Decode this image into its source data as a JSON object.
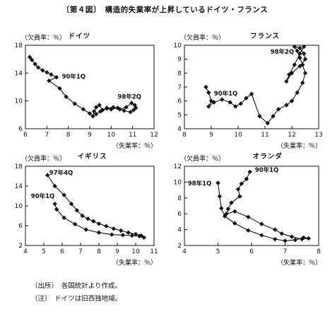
{
  "figure_title": "〔第４図〕　構造的失業率が上昇しているドイツ・フランス",
  "notes": [
    "（出所）　各国統計より作成。",
    "（注）　ドイツは旧西独地域。"
  ],
  "chart_data": [
    {
      "type": "scatter",
      "title": "ドイツ",
      "xlabel": "（失業率：％）",
      "ylabel": "（欠員率：％）",
      "xlim": [
        6,
        12
      ],
      "ylim": [
        6,
        18
      ],
      "xticks": [
        6,
        7,
        8,
        9,
        10,
        11,
        12
      ],
      "yticks": [
        6,
        10,
        14,
        18
      ],
      "annotations": [
        {
          "text": "90年1Q",
          "x": 7.7,
          "y": 13.2
        },
        {
          "text": "98年2Q",
          "x": 10.3,
          "y": 10.3
        }
      ],
      "series": [
        {
          "x": [
            6.2,
            6.3,
            6.45,
            6.6,
            6.8,
            7.0,
            7.2,
            7.45,
            7.1,
            7.6,
            7.9,
            8.3,
            8.7,
            9.0,
            9.15,
            9.2,
            9.3,
            9.45,
            9.6,
            9.8,
            10.0,
            10.3,
            10.6,
            10.9,
            11.05,
            11.15,
            11.1,
            10.95,
            10.7,
            10.4,
            10.1,
            9.8,
            9.5,
            9.3
          ],
          "y": [
            16.3,
            15.9,
            15.3,
            14.8,
            14.4,
            14.1,
            13.8,
            13.4,
            12.9,
            11.8,
            10.6,
            9.6,
            8.8,
            8.2,
            7.8,
            8.5,
            9.1,
            9.4,
            8.7,
            9.0,
            8.8,
            9.0,
            8.6,
            8.4,
            8.7,
            9.0,
            9.4,
            9.7,
            9.1,
            8.8,
            9.1,
            8.9,
            8.5,
            8.1
          ]
        }
      ]
    },
    {
      "type": "scatter",
      "title": "フランス",
      "xlabel": "（失業率：％）",
      "ylabel": "（欠員率：％）",
      "xlim": [
        8,
        13
      ],
      "ylim": [
        4,
        10
      ],
      "xticks": [
        8,
        9,
        10,
        11,
        12,
        13
      ],
      "yticks": [
        4,
        5,
        6,
        7,
        8,
        9,
        10
      ],
      "annotations": [
        {
          "text": "90年1Q",
          "x": 9.1,
          "y": 6.4
        },
        {
          "text": "98年2Q",
          "x": 11.2,
          "y": 9.4
        }
      ],
      "series": [
        {
          "x": [
            8.8,
            8.9,
            9.0,
            8.9,
            9.1,
            9.4,
            9.7,
            9.9,
            10.1,
            10.3,
            10.5,
            10.8,
            11.1,
            11.3,
            11.5,
            11.8,
            12.0,
            12.2,
            12.4,
            12.5,
            12.4,
            12.3,
            12.2,
            12.1,
            12.3,
            12.45,
            12.5,
            12.3,
            12.0,
            11.8,
            11.9,
            12.1,
            12.3,
            12.45
          ],
          "y": [
            7.0,
            6.6,
            6.0,
            5.6,
            5.9,
            6.1,
            5.9,
            5.6,
            5.8,
            6.2,
            6.5,
            4.9,
            4.4,
            4.9,
            5.4,
            5.7,
            6.0,
            6.6,
            7.3,
            8.0,
            8.6,
            9.1,
            9.6,
            9.9,
            9.8,
            9.4,
            9.0,
            8.5,
            8.0,
            7.4,
            7.9,
            8.6,
            9.4,
            9.9
          ]
        }
      ]
    },
    {
      "type": "scatter",
      "title": "イギリス",
      "xlabel": "（失業率：％）",
      "ylabel": "（欠員率：％）",
      "xlim": [
        4,
        11
      ],
      "ylim": [
        2,
        18
      ],
      "xticks": [
        4,
        5,
        6,
        7,
        8,
        9,
        10,
        11
      ],
      "yticks": [
        2,
        6,
        10,
        14,
        18
      ],
      "annotations": [
        {
          "text": "97年4Q",
          "x": 5.3,
          "y": 16.3
        },
        {
          "text": "90年1Q",
          "x": 4.3,
          "y": 11.6
        }
      ],
      "series": [
        {
          "x": [
            5.6,
            5.7,
            6.1,
            6.7,
            7.3,
            8.0,
            8.7,
            9.3,
            9.8,
            10.2,
            10.45,
            10.3,
            10.0,
            9.6,
            9.2,
            8.8,
            8.4,
            8.0,
            7.7,
            7.4,
            7.1,
            6.8,
            6.5,
            6.1,
            5.6,
            5.2
          ],
          "y": [
            10.4,
            9.3,
            7.6,
            6.3,
            5.2,
            4.6,
            4.2,
            4.1,
            4.0,
            3.9,
            3.6,
            4.0,
            4.3,
            4.6,
            5.0,
            5.4,
            5.9,
            6.4,
            6.9,
            7.4,
            8.0,
            9.1,
            10.4,
            12.2,
            14.0,
            16.2
          ]
        }
      ]
    },
    {
      "type": "scatter",
      "title": "オランダ",
      "xlabel": "（失業率：％）",
      "ylabel": "（欠員率：％）",
      "xlim": [
        4,
        8
      ],
      "ylim": [
        2,
        12
      ],
      "xticks": [
        4,
        5,
        6,
        7,
        8
      ],
      "yticks": [
        2,
        4,
        6,
        8,
        10,
        12
      ],
      "annotations": [
        {
          "text": "90年1Q",
          "x": 6.1,
          "y": 11.3
        },
        {
          "text": "98年1Q",
          "x": 4.1,
          "y": 9.6
        }
      ],
      "series": [
        {
          "x": [
            5.95,
            5.85,
            5.7,
            5.6,
            5.65,
            5.4,
            5.3,
            5.25,
            5.5,
            5.9,
            6.3,
            6.7,
            6.9,
            7.2,
            7.5,
            7.7,
            7.55,
            7.3,
            7.0,
            6.7,
            6.3,
            5.9,
            5.5,
            5.2,
            5.1,
            5.05,
            5.0
          ],
          "y": [
            11.3,
            10.4,
            9.8,
            9.1,
            8.2,
            7.4,
            6.6,
            6.0,
            6.3,
            5.6,
            4.7,
            4.0,
            3.5,
            3.1,
            2.8,
            2.9,
            3.0,
            2.7,
            2.6,
            2.8,
            3.3,
            3.9,
            4.8,
            5.7,
            6.7,
            8.2,
            9.9
          ]
        }
      ]
    }
  ]
}
